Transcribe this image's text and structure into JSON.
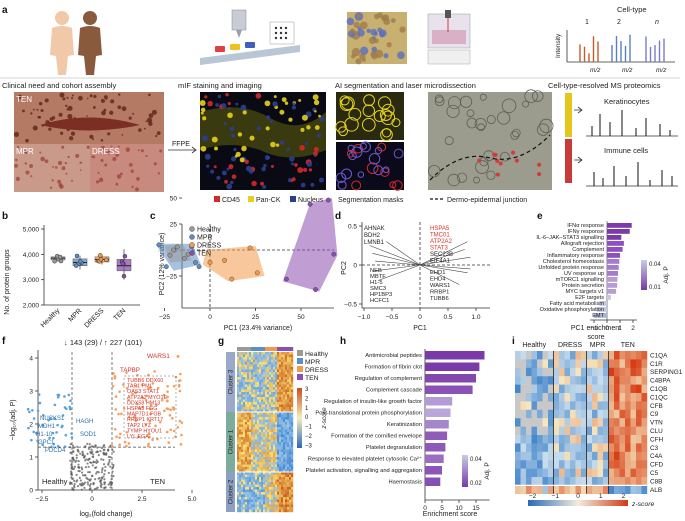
{
  "colors": {
    "healthy": "#9a9a9a",
    "mpr": "#5e8fc2",
    "dress": "#f39a4a",
    "ten": "#8c4fb0",
    "purple": "#8e4fbf",
    "blue_point": "#5aa2d8",
    "orange_point": "#f5a05a",
    "red_text": "#d6342c",
    "ck_yellow": "#e6d21c",
    "cd45_red": "#d4282a",
    "nucleus_blue": "#2b3e8f"
  },
  "panel_a": {
    "letter": "a",
    "step_labels": [
      "Clinical need and cohort assembly",
      "mIF staining and imaging",
      "AI segmentation and laser microdissection",
      "Cell-type-resolved MS proteomics"
    ],
    "celltype_label": "Cell-type",
    "celltype_numbers": [
      "1",
      "2",
      "n"
    ],
    "intensity_label": "Intensity",
    "mz_label": "m/z",
    "photo_labels": [
      "TEN",
      "MPR",
      "DRESS"
    ],
    "ffpe_label": "FFPE",
    "legend": [
      "CD45",
      "Pan-CK",
      "Nucleus"
    ],
    "segmentation_label": "Segmentation masks",
    "junction_label": "Dermo-epidermal junction",
    "keratinocytes_label": "Keratinocytes",
    "immune_label": "Immune cells"
  },
  "panel_b": {
    "letter": "b",
    "ylabel": "No. of protein groups",
    "yticks": [
      "2,000",
      "3,000",
      "4,000",
      "5,000"
    ],
    "groups": [
      "Healthy",
      "MPR",
      "DRESS",
      "TEN"
    ]
  },
  "panel_c": {
    "letter": "c",
    "xlabel": "PC1 (23.4% variance)",
    "ylabel": "PC2 (12% variance)",
    "xticks": [
      "−25",
      "0",
      "25",
      "50"
    ],
    "yticks": [
      "50",
      "25",
      "0",
      "−25"
    ],
    "legend": [
      "Healthy",
      "MPR",
      "DRESS",
      "TEN"
    ]
  },
  "panel_d": {
    "letter": "d",
    "xlabel": "PC1",
    "ylabel": "PC2",
    "xticks": [
      "−1.0",
      "−0.5",
      "0",
      "0.5",
      "1.0"
    ],
    "yticks": [
      "0.5",
      "0",
      "−0.5"
    ],
    "top_left": [
      "AHNAK",
      "BDH2",
      "LMNB1"
    ],
    "top_right_red": [
      "HSPA5",
      "TMC01",
      "ATP2A2",
      "STAT3"
    ],
    "top_right": [
      "SEC23B",
      "EIF4A1"
    ],
    "bottom_left": [
      "NEB",
      "MBTF",
      "H1-5",
      "SMC3",
      "HP1BP3",
      "HCFC1"
    ],
    "bottom_right": [
      "EHD1",
      "EHD4",
      "WARS1",
      "RRBP1",
      "TUBB6"
    ]
  },
  "panel_e": {
    "letter": "e",
    "xlabel": "PC1 enrichment",
    "xlabel2": "score",
    "xticks": [
      "−1",
      "0",
      "1",
      "2"
    ],
    "legend_title": "Adj. P",
    "legend_ticks": [
      "0.04",
      "0.01"
    ],
    "terms": [
      "IFNα response",
      "IFNγ response",
      "IL-6–JAK–STAT3 signalling",
      "Allograft rejection",
      "Complement",
      "Inflammatory response",
      "Cholesterol homeostasis",
      "Unfolded protein response",
      "UV response up",
      "mTORC1 signalling",
      "Protein secretion",
      "MYC targets v1",
      "E2F targets",
      "Fatty acid metabolism",
      "Oxidative phosphorylation",
      "EMT"
    ],
    "scores": [
      1.9,
      1.75,
      1.1,
      1.3,
      1.2,
      1.0,
      0.95,
      0.9,
      0.85,
      0.8,
      0.78,
      0.7,
      0.3,
      -0.6,
      -0.8,
      -1.0
    ]
  },
  "panel_f": {
    "letter": "f",
    "header": "↓ 143 (29) / ↑ 227 (101)",
    "xlabel": "log₂(fold change)",
    "ylabel": "−log₁₀(adj. P)",
    "xticks": [
      "−2.5",
      "0",
      "2.5",
      "5.0"
    ],
    "yticks": [
      "0",
      "1",
      "2",
      "3",
      "4"
    ],
    "left_group": "Healthy",
    "right_group": "TEN",
    "down_labels": [
      "NUCKS1",
      "MDH1",
      "H1-10",
      "GPC1",
      "PDCD4",
      "HAGH",
      "SOD1"
    ],
    "up_labels": [
      "WARS1",
      "TAPBP",
      "TUBB6 DDX60",
      "TAP1 PML",
      "OAS3 STAT1",
      "ATP2A2 MYO1E",
      "DDX58 HM13",
      "HSPA5 FGG",
      "MAP7D1 FGB",
      "RRBP1 KRT17",
      "TAP2 LYZ",
      "TYMP HYOU1",
      "LYL EGA"
    ]
  },
  "panel_g": {
    "letter": "g",
    "clusters": [
      "Cluster 3",
      "Cluster 1",
      "Cluster 2"
    ],
    "legend": [
      "Healthy",
      "MPR",
      "DRESS",
      "TEN"
    ],
    "scale_title": "z-score",
    "scale_ticks": [
      "3",
      "2",
      "1",
      "0",
      "−1",
      "−2",
      "−3"
    ]
  },
  "panel_h": {
    "letter": "h",
    "xlabel": "Enrichment score",
    "xticks": [
      "0",
      "5",
      "10",
      "15"
    ],
    "legend_title": "Adj. P",
    "legend_ticks": [
      "0.04",
      "0.02"
    ],
    "terms": [
      "Antimicrobial peptides",
      "Formation of fibrin clot",
      "Regulation of complement",
      "Complement cascade",
      "Regulation of insulin-like growth factor",
      "Post-translational protein phosphorylation",
      "Keratinization",
      "Formation of the cornified envelope",
      "Platelet degranulation",
      "Response to elevated platelet cytosolic Ca²⁺",
      "Platelet activation, signalling and aggregation",
      "Haemostasis"
    ],
    "scores": [
      17.5,
      16,
      15,
      14,
      8,
      7.5,
      7,
      6.5,
      6,
      5.5,
      5,
      4.5
    ]
  },
  "panel_i": {
    "letter": "i",
    "groups": [
      "Healthy",
      "DRESS",
      "MPR",
      "TEN"
    ],
    "genes": [
      "C1QA",
      "C1R",
      "SERPING1",
      "C4BPA",
      "C1QB",
      "C1QC",
      "CFB",
      "C9",
      "VTN",
      "CLU",
      "CFH",
      "C3",
      "C4A",
      "CFD",
      "C5",
      "C8B",
      "ALB"
    ],
    "scale_ticks": [
      "−2",
      "−1",
      "0",
      "1",
      "2"
    ],
    "scale_title": "z-score"
  }
}
